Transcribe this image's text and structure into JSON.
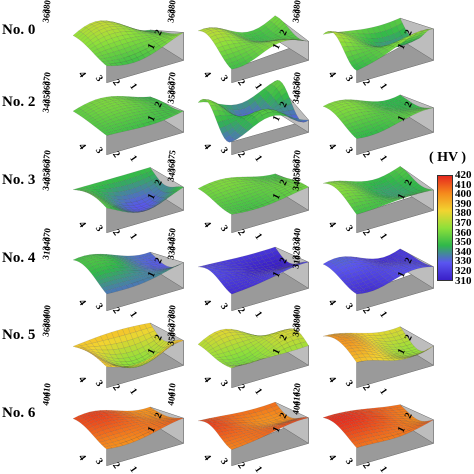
{
  "rows": [
    {
      "label": "No. 0",
      "panels": [
        {
          "zticks": [
            "380",
            "360"
          ],
          "base": 358,
          "amp": 14,
          "fx": 1.3,
          "fy": 1.0,
          "ph": 0.4
        },
        {
          "zticks": [
            "380",
            "360"
          ],
          "base": 357,
          "amp": 12,
          "fx": 1.6,
          "fy": 1.2,
          "ph": 1.2
        },
        {
          "zticks": [
            "380",
            "360"
          ],
          "base": 355,
          "amp": 15,
          "fx": 1.1,
          "fy": 1.5,
          "ph": 2.1
        }
      ]
    },
    {
      "label": "No. 2",
      "panels": [
        {
          "zticks": [
            "370",
            "360",
            "350",
            "340"
          ],
          "base": 352,
          "amp": 8,
          "fx": 1.2,
          "fy": 0.8,
          "ph": 0.3
        },
        {
          "zticks": [
            "370",
            "360",
            "350"
          ],
          "base": 343,
          "amp": 16,
          "fx": 1.7,
          "fy": 1.6,
          "ph": 1.8
        },
        {
          "zticks": [
            "360",
            "350",
            "340"
          ],
          "base": 352,
          "amp": 9,
          "fx": 1.4,
          "fy": 1.1,
          "ph": 0.9
        }
      ]
    },
    {
      "label": "No. 3",
      "panels": [
        {
          "zticks": [
            "370",
            "360",
            "350",
            "340"
          ],
          "base": 347,
          "amp": 14,
          "fx": 1.1,
          "fy": 0.9,
          "ph": 2.6
        },
        {
          "zticks": [
            "375",
            "360",
            "345"
          ],
          "base": 355,
          "amp": 6,
          "fx": 1.3,
          "fy": 1.3,
          "ph": 0.5
        },
        {
          "zticks": [
            "370",
            "360",
            "350",
            "340"
          ],
          "base": 351,
          "amp": 10,
          "fx": 1.5,
          "fy": 1.0,
          "ph": 1.5
        }
      ]
    },
    {
      "label": "No. 4",
      "panels": [
        {
          "zticks": [
            "370",
            "340",
            "310"
          ],
          "base": 338,
          "amp": 11,
          "fx": 1.2,
          "fy": 1.0,
          "ph": 1.1
        },
        {
          "zticks": [
            "350",
            "340",
            "330"
          ],
          "base": 318,
          "amp": 7,
          "fx": 1.0,
          "fy": 1.4,
          "ph": 2.2
        },
        {
          "zticks": [
            "340",
            "330",
            "320",
            "310"
          ],
          "base": 321,
          "amp": 8,
          "fx": 1.6,
          "fy": 1.2,
          "ph": 0.7
        }
      ]
    },
    {
      "label": "No. 5",
      "panels": [
        {
          "zticks": [
            "400",
            "380",
            "360"
          ],
          "base": 385,
          "amp": 16,
          "fx": 1.0,
          "fy": 1.1,
          "ph": 2.9
        },
        {
          "zticks": [
            "380",
            "370",
            "360",
            "350"
          ],
          "base": 368,
          "amp": 11,
          "fx": 1.5,
          "fy": 1.5,
          "ph": 0.2
        },
        {
          "zticks": [
            "400",
            "380",
            "360"
          ],
          "base": 382,
          "amp": 13,
          "fx": 1.1,
          "fy": 0.8,
          "ph": 1.6
        }
      ]
    },
    {
      "label": "No. 6",
      "panels": [
        {
          "zticks": [
            "410",
            "400"
          ],
          "base": 405,
          "amp": 8,
          "fx": 1.3,
          "fy": 1.1,
          "ph": 0.8
        },
        {
          "zticks": [
            "410",
            "400"
          ],
          "base": 407,
          "amp": 7,
          "fx": 1.1,
          "fy": 1.4,
          "ph": 2.0
        },
        {
          "zticks": [
            "420",
            "410",
            "400"
          ],
          "base": 408,
          "amp": 8,
          "fx": 0.9,
          "fy": 1.0,
          "ph": 1.3
        }
      ]
    }
  ],
  "axis_ticks": [
    "4",
    "3",
    "2",
    "1"
  ],
  "colorbar": {
    "title": "( HV )",
    "ticks": [
      "420",
      "410",
      "400",
      "390",
      "380",
      "370",
      "360",
      "350",
      "340",
      "330",
      "320",
      "310"
    ],
    "min": 310,
    "max": 420,
    "colors": [
      "#3a1fc8",
      "#5a55f0",
      "#2fb84a",
      "#8ee03a",
      "#f2d430",
      "#f58a1c",
      "#e6281e"
    ]
  }
}
